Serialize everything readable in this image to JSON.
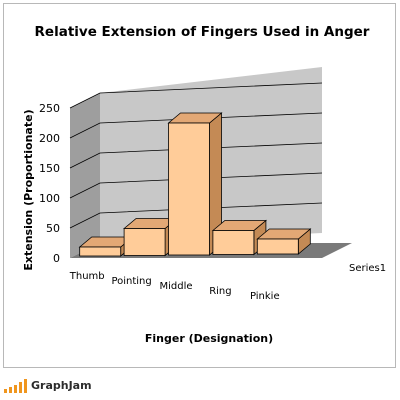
{
  "chart_data": {
    "type": "bar",
    "title": "Relative Extension of Fingers Used in Anger",
    "xlabel": "Finger (Designation)",
    "ylabel": "Extension (Proportionate)",
    "categories": [
      "Thumb",
      "Pointing",
      "Middle",
      "Ring",
      "Pinkie"
    ],
    "series": [
      {
        "name": "Series1",
        "values": [
          15,
          45,
          220,
          40,
          25
        ]
      }
    ],
    "ylim": [
      0,
      250
    ],
    "yticks": [
      0,
      50,
      100,
      150,
      200,
      250
    ],
    "grid": true,
    "legend": "right",
    "style": "3d-column",
    "colors": {
      "bar_front": "#ffcc99",
      "bar_side": "#c48a55",
      "bar_top": "#e3a875",
      "back_wall": "#c8c8c8",
      "side_wall": "#9e9e9e",
      "floor": "#7a7a7a",
      "gridline": "#000000"
    }
  },
  "watermark": {
    "text": "GraphJam",
    "bar_color": "#f0961e"
  }
}
